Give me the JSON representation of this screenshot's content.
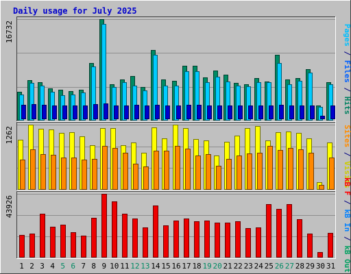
{
  "chart_data": {
    "title": "Daily usage for July 2025",
    "type": "bar",
    "days": [
      "1",
      "2",
      "3",
      "4",
      "5",
      "6",
      "7",
      "8",
      "9",
      "10",
      "11",
      "12",
      "13",
      "14",
      "15",
      "16",
      "17",
      "18",
      "19",
      "20",
      "21",
      "22",
      "23",
      "24",
      "25",
      "26",
      "27",
      "28",
      "29",
      "30",
      "31"
    ],
    "weekend_days": [
      "5",
      "6",
      "12",
      "13",
      "19",
      "20",
      "26",
      "27"
    ],
    "panels": [
      {
        "key": "top",
        "max_label": "16732",
        "ymax": 16732,
        "right_labels": [
          {
            "text": "Pages",
            "color": "#00bfff"
          },
          {
            "text": " / ",
            "color": "#000080"
          },
          {
            "text": "Files",
            "color": "#0060ff"
          },
          {
            "text": " / ",
            "color": "#000080"
          },
          {
            "text": "Hits",
            "color": "#008060"
          }
        ],
        "series": [
          {
            "key": "hits",
            "color": "#008a63",
            "values": [
              4700,
              6700,
              6300,
              5300,
              5100,
              4900,
              5100,
              9500,
              16700,
              6000,
              6800,
              7300,
              5500,
              11700,
              6800,
              6600,
              9100,
              9000,
              7100,
              8200,
              7600,
              6200,
              6000,
              7000,
              6400,
              10900,
              6800,
              7000,
              8500,
              2500,
              6300
            ]
          },
          {
            "key": "files",
            "color": "#00ccff",
            "values": [
              4300,
              6200,
              5800,
              4800,
              4200,
              4300,
              4600,
              8900,
              15900,
              5500,
              6300,
              5800,
              5000,
              10800,
              5800,
              5800,
              8100,
              8100,
              6300,
              7200,
              6400,
              5800,
              5700,
              6300,
              6300,
              9500,
              6000,
              6600,
              7900,
              2300,
              6000
            ]
          },
          {
            "key": "pages",
            "color": "#0000cc",
            "values": [
              2400,
              2500,
              2400,
              2300,
              2300,
              2300,
              2300,
              2500,
              2600,
              2300,
              2300,
              2400,
              2300,
              2400,
              2300,
              2300,
              2400,
              2400,
              2300,
              2300,
              2300,
              2300,
              2300,
              2300,
              2300,
              2400,
              2300,
              2300,
              2300,
              600,
              2300
            ]
          }
        ]
      },
      {
        "key": "middle",
        "max_label": "1262",
        "ymax": 1262,
        "right_labels": [
          {
            "text": "Sites",
            "color": "#ff8c00"
          },
          {
            "text": " / ",
            "color": "#000080"
          },
          {
            "text": "Visits",
            "color": "#cccc00"
          }
        ],
        "series": [
          {
            "key": "visits",
            "color": "#ffff00",
            "values": [
              970,
              1260,
              1180,
              1170,
              1100,
              1110,
              1040,
              860,
              1190,
              1190,
              860,
              910,
              720,
              1210,
              1000,
              1260,
              1200,
              980,
              960,
              670,
              930,
              1050,
              1190,
              1230,
              960,
              1120,
              1130,
              1100,
              990,
              150,
              910
            ]
          },
          {
            "key": "sites",
            "color": "#ff8800",
            "values": [
              590,
              780,
              690,
              680,
              620,
              620,
              590,
              600,
              850,
              810,
              720,
              510,
              450,
              760,
              760,
              850,
              800,
              660,
              690,
              470,
              600,
              660,
              700,
              720,
              850,
              770,
              810,
              780,
              720,
              90,
              630
            ]
          }
        ]
      },
      {
        "key": "bottom",
        "max_label": "43926",
        "ymax": 43926,
        "right_labels": [
          {
            "text": "kB F",
            "color": "#ff0000"
          },
          {
            "text": " / ",
            "color": "#000080"
          },
          {
            "text": "kB In",
            "color": "#0080ff"
          },
          {
            "text": " / ",
            "color": "#000080"
          },
          {
            "text": "kB Out",
            "color": "#00a060"
          }
        ],
        "series": [
          {
            "key": "kbf",
            "color": "#ee0000",
            "values": [
              15700,
              16500,
              30000,
              21200,
              22500,
              17500,
              15200,
              27200,
              43900,
              38700,
              30000,
              27000,
              20900,
              36000,
              22000,
              25300,
              27000,
              25000,
              25300,
              23900,
              24300,
              25000,
              20200,
              20600,
              36700,
              33300,
              36700,
              26500,
              16300,
              3700,
              16900
            ]
          }
        ]
      }
    ]
  }
}
